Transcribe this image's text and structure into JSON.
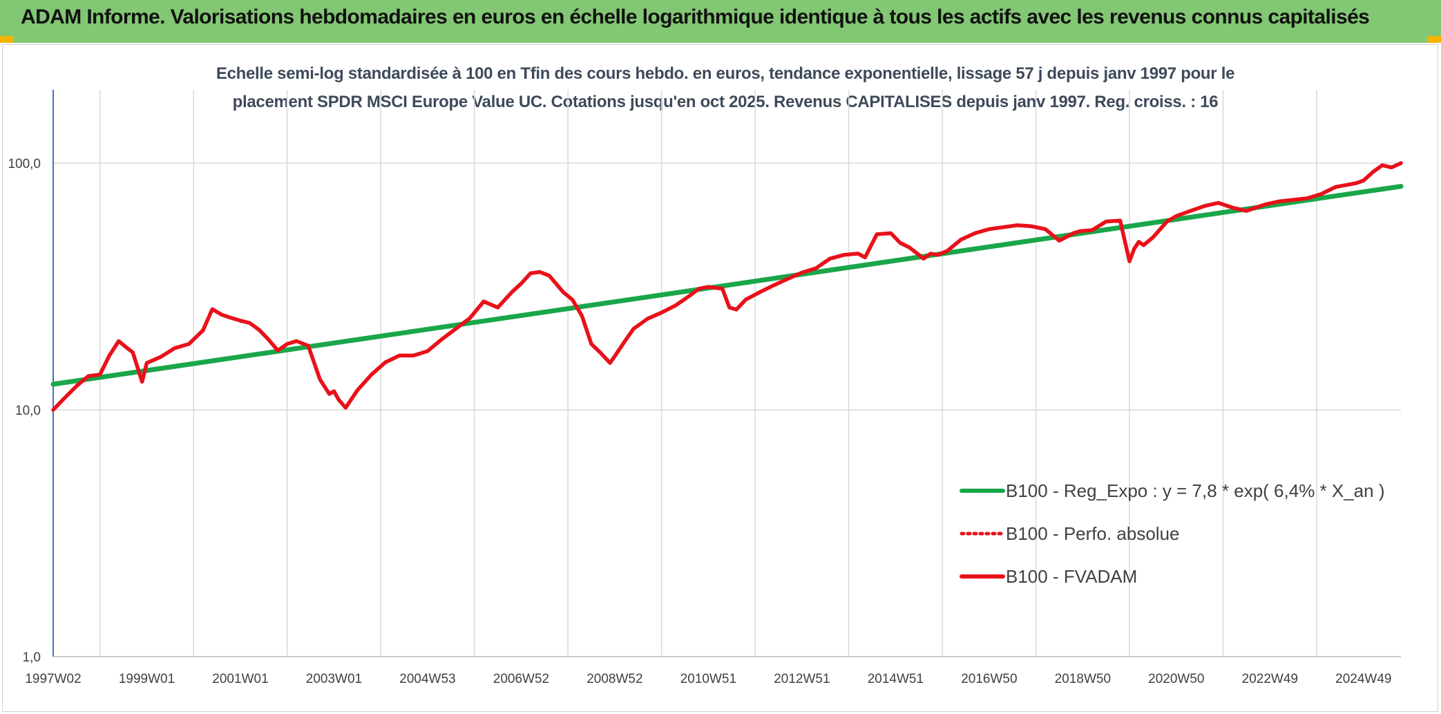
{
  "header": {
    "title": "ADAM Informe. Valorisations hebdomadaires en euros en échelle logarithmique identique à tous les actifs avec les revenus connus capitalisés"
  },
  "colors": {
    "header_bg": "#82c773",
    "trend_line": "#1aa64a",
    "fvadam_line": "#e8111a",
    "gridline": "#d9d9d9",
    "axis": "#4472c4"
  },
  "chart_data": {
    "type": "line",
    "title_line1": "Echelle semi-log standardisée à 100 en Tfin des cours hebdo. en euros, tendance exponentielle, lissage 57 j depuis janv 1997 pour le",
    "title_line2": "placement SPDR MSCI Europe Value UC. Cotations jusqu'en oct 2025. Revenus CAPITALISES depuis janv 1997. Reg. croiss. : 16",
    "y_scale": "log",
    "ylim": [
      1,
      100
    ],
    "xlim": [
      1997.0,
      2025.8
    ],
    "grid": true,
    "legend_position": "right-middle",
    "y_ticks": [
      {
        "value": 100,
        "label": "100,0"
      },
      {
        "value": 10,
        "label": "10,0"
      },
      {
        "value": 1,
        "label": "1,0"
      }
    ],
    "x_ticks": [
      {
        "x": 1997.0,
        "label": "1997W02"
      },
      {
        "x": 1999.0,
        "label": "1999W01"
      },
      {
        "x": 2001.0,
        "label": "2001W01"
      },
      {
        "x": 2003.0,
        "label": "2003W01"
      },
      {
        "x": 2005.0,
        "label": "2004W53"
      },
      {
        "x": 2007.0,
        "label": "2006W52"
      },
      {
        "x": 2009.0,
        "label": "2008W52"
      },
      {
        "x": 2011.0,
        "label": "2010W51"
      },
      {
        "x": 2013.0,
        "label": "2012W51"
      },
      {
        "x": 2015.0,
        "label": "2014W51"
      },
      {
        "x": 2017.0,
        "label": "2016W50"
      },
      {
        "x": 2019.0,
        "label": "2018W50"
      },
      {
        "x": 2021.0,
        "label": "2020W50"
      },
      {
        "x": 2023.0,
        "label": "2022W49"
      },
      {
        "x": 2025.0,
        "label": "2024W49"
      }
    ],
    "series": [
      {
        "name": "B100 - Reg_Expo : y = 7,8 * exp( 6,4% *  X_an )",
        "color": "#1aa64a",
        "style": "solid",
        "x": [
          1997.0,
          2025.8
        ],
        "y": [
          12.7,
          80.5
        ]
      },
      {
        "name": "B100 - Perfo. absolue",
        "color": "#e8111a",
        "style": "dotted",
        "x": [],
        "y": []
      },
      {
        "name": "B100 - FVADAM",
        "color": "#e8111a",
        "style": "solid",
        "x": [
          1997.0,
          1997.25,
          1997.5,
          1997.75,
          1998.0,
          1998.2,
          1998.4,
          1998.55,
          1998.7,
          1998.9,
          1999.0,
          1999.3,
          1999.6,
          1999.9,
          2000.2,
          2000.4,
          2000.6,
          2000.8,
          2001.0,
          2001.2,
          2001.4,
          2001.6,
          2001.8,
          2002.0,
          2002.2,
          2002.45,
          2002.7,
          2002.9,
          2003.0,
          2003.1,
          2003.25,
          2003.5,
          2003.8,
          2004.1,
          2004.4,
          2004.7,
          2005.0,
          2005.3,
          2005.6,
          2005.9,
          2006.2,
          2006.5,
          2006.8,
          2007.0,
          2007.2,
          2007.4,
          2007.6,
          2007.9,
          2008.1,
          2008.3,
          2008.5,
          2008.7,
          2008.9,
          2009.0,
          2009.2,
          2009.4,
          2009.7,
          2010.0,
          2010.3,
          2010.6,
          2010.8,
          2011.0,
          2011.3,
          2011.45,
          2011.6,
          2011.8,
          2012.1,
          2012.4,
          2012.7,
          2013.0,
          2013.3,
          2013.6,
          2013.9,
          2014.2,
          2014.35,
          2014.6,
          2014.9,
          2015.1,
          2015.3,
          2015.6,
          2015.75,
          2015.9,
          2016.1,
          2016.4,
          2016.7,
          2017.0,
          2017.3,
          2017.6,
          2017.9,
          2018.2,
          2018.5,
          2018.8,
          2018.95,
          2019.2,
          2019.5,
          2019.8,
          2020.0,
          2020.1,
          2020.2,
          2020.3,
          2020.5,
          2020.8,
          2021.0,
          2021.3,
          2021.6,
          2021.9,
          2022.2,
          2022.5,
          2022.7,
          2022.9,
          2023.2,
          2023.5,
          2023.8,
          2024.1,
          2024.4,
          2024.7,
          2024.85,
          2025.0,
          2025.2,
          2025.4,
          2025.6,
          2025.8
        ],
        "y": [
          10.0,
          11.2,
          12.5,
          13.7,
          13.9,
          16.6,
          19.0,
          18.0,
          17.1,
          13.0,
          15.5,
          16.4,
          17.8,
          18.5,
          21.0,
          25.6,
          24.3,
          23.6,
          23.0,
          22.5,
          21.1,
          19.3,
          17.4,
          18.5,
          19.0,
          18.2,
          13.3,
          11.6,
          11.9,
          11.0,
          10.2,
          12.0,
          13.9,
          15.6,
          16.6,
          16.6,
          17.3,
          19.3,
          21.3,
          23.5,
          27.5,
          26.0,
          30.0,
          32.5,
          35.8,
          36.2,
          35.0,
          30.0,
          27.9,
          24.0,
          18.5,
          17.0,
          15.5,
          16.5,
          18.8,
          21.3,
          23.4,
          24.8,
          26.5,
          29.0,
          31.0,
          31.5,
          31.0,
          26.0,
          25.5,
          28.0,
          30.0,
          32.0,
          34.0,
          36.0,
          37.5,
          41.0,
          42.5,
          43.0,
          41.5,
          51.5,
          52.0,
          47.5,
          45.5,
          41.0,
          43.0,
          42.5,
          44.0,
          49.0,
          52.0,
          54.0,
          55.0,
          56.0,
          55.5,
          54.0,
          48.5,
          52.0,
          53.0,
          53.5,
          58.0,
          58.5,
          40.0,
          45.0,
          48.0,
          46.5,
          50.0,
          58.0,
          61.0,
          64.0,
          67.0,
          69.0,
          66.0,
          64.0,
          66.0,
          68.0,
          70.0,
          71.0,
          72.0,
          75.0,
          80.0,
          82.0,
          83.0,
          85.0,
          92.0,
          98.0,
          96.0,
          100.0
        ]
      }
    ]
  }
}
